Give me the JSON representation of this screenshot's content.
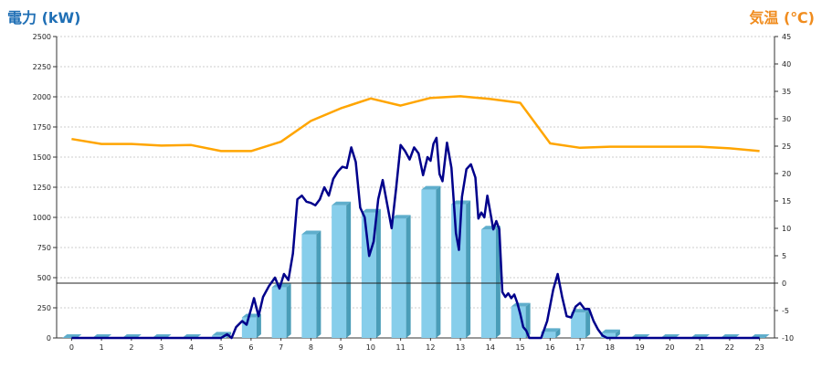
{
  "chart_data": {
    "type": "bar",
    "left_axis_title": "電力 (kW)",
    "right_axis_title": "気温 (℃)",
    "colors": {
      "bar_front": "#87CEEB",
      "bar_side": "#4A9DB8",
      "bar_top": "#5FAECC",
      "power_line": "#00008B",
      "temp_line": "#FFA500",
      "grid": "#cccccc",
      "left_title": "#1f6fb5",
      "right_title": "#f08c1e"
    },
    "grid": true,
    "x": {
      "categories": [
        "0",
        "1",
        "2",
        "3",
        "4",
        "5",
        "6",
        "7",
        "8",
        "9",
        "10",
        "11",
        "12",
        "13",
        "14",
        "15",
        "16",
        "17",
        "18",
        "19",
        "20",
        "21",
        "22",
        "23"
      ]
    },
    "y_left": {
      "range": [
        0,
        2500
      ],
      "ticks": [
        0,
        250,
        500,
        750,
        1000,
        1250,
        1500,
        1750,
        2000,
        2250,
        2500
      ],
      "tick_labels": [
        "0",
        "250",
        "500",
        "750",
        "1000",
        "1250",
        "1500",
        "1750",
        "2000",
        "2250",
        "2500"
      ]
    },
    "y_right": {
      "range": [
        -10,
        45
      ],
      "ticks": [
        -10,
        -5,
        0,
        5,
        10,
        15,
        20,
        25,
        30,
        35,
        40,
        45
      ],
      "tick_labels": [
        "-10",
        "-5",
        "0",
        "5",
        "10",
        "15",
        "20",
        "25",
        "30",
        "35",
        "40",
        "45"
      ],
      "zero_line": true
    },
    "hourly_power_bars": [
      0,
      0,
      0,
      0,
      0,
      20,
      170,
      420,
      860,
      1100,
      1040,
      990,
      1230,
      1110,
      900,
      260,
      50,
      210,
      40,
      0,
      0,
      0,
      0,
      0
    ],
    "power_line": [
      [
        0,
        0
      ],
      [
        1,
        0
      ],
      [
        2,
        0
      ],
      [
        3,
        0
      ],
      [
        4,
        0
      ],
      [
        5,
        0
      ],
      [
        5.2,
        30
      ],
      [
        5.35,
        0
      ],
      [
        5.5,
        90
      ],
      [
        5.7,
        140
      ],
      [
        5.85,
        110
      ],
      [
        6,
        240
      ],
      [
        6.1,
        330
      ],
      [
        6.25,
        180
      ],
      [
        6.4,
        340
      ],
      [
        6.6,
        430
      ],
      [
        6.8,
        500
      ],
      [
        6.95,
        410
      ],
      [
        7.1,
        530
      ],
      [
        7.25,
        480
      ],
      [
        7.4,
        700
      ],
      [
        7.55,
        1150
      ],
      [
        7.7,
        1180
      ],
      [
        7.85,
        1130
      ],
      [
        8,
        1120
      ],
      [
        8.15,
        1100
      ],
      [
        8.3,
        1150
      ],
      [
        8.45,
        1250
      ],
      [
        8.6,
        1180
      ],
      [
        8.75,
        1320
      ],
      [
        8.9,
        1380
      ],
      [
        9.05,
        1420
      ],
      [
        9.2,
        1410
      ],
      [
        9.35,
        1580
      ],
      [
        9.5,
        1460
      ],
      [
        9.65,
        1080
      ],
      [
        9.8,
        1000
      ],
      [
        9.95,
        680
      ],
      [
        10.1,
        800
      ],
      [
        10.25,
        1150
      ],
      [
        10.4,
        1310
      ],
      [
        10.55,
        1110
      ],
      [
        10.7,
        910
      ],
      [
        10.85,
        1240
      ],
      [
        11,
        1600
      ],
      [
        11.15,
        1550
      ],
      [
        11.3,
        1480
      ],
      [
        11.45,
        1580
      ],
      [
        11.6,
        1530
      ],
      [
        11.75,
        1350
      ],
      [
        11.9,
        1500
      ],
      [
        12,
        1470
      ],
      [
        12.1,
        1610
      ],
      [
        12.2,
        1660
      ],
      [
        12.3,
        1360
      ],
      [
        12.4,
        1300
      ],
      [
        12.55,
        1620
      ],
      [
        12.7,
        1410
      ],
      [
        12.85,
        870
      ],
      [
        12.95,
        730
      ],
      [
        13.05,
        1170
      ],
      [
        13.2,
        1400
      ],
      [
        13.35,
        1440
      ],
      [
        13.5,
        1330
      ],
      [
        13.6,
        990
      ],
      [
        13.7,
        1040
      ],
      [
        13.8,
        1000
      ],
      [
        13.9,
        1180
      ],
      [
        14,
        1040
      ],
      [
        14.1,
        900
      ],
      [
        14.2,
        970
      ],
      [
        14.3,
        900
      ],
      [
        14.4,
        380
      ],
      [
        14.5,
        340
      ],
      [
        14.6,
        370
      ],
      [
        14.7,
        330
      ],
      [
        14.8,
        360
      ],
      [
        14.9,
        290
      ],
      [
        15,
        200
      ],
      [
        15.1,
        90
      ],
      [
        15.2,
        60
      ],
      [
        15.3,
        0
      ],
      [
        15.7,
        0
      ],
      [
        15.9,
        140
      ],
      [
        16.1,
        400
      ],
      [
        16.25,
        530
      ],
      [
        16.4,
        340
      ],
      [
        16.55,
        180
      ],
      [
        16.7,
        170
      ],
      [
        16.85,
        260
      ],
      [
        17,
        290
      ],
      [
        17.15,
        240
      ],
      [
        17.3,
        240
      ],
      [
        17.45,
        140
      ],
      [
        17.6,
        70
      ],
      [
        17.75,
        20
      ],
      [
        17.9,
        0
      ],
      [
        18,
        0
      ],
      [
        23,
        0
      ]
    ],
    "temperature_line": [
      [
        0,
        26.3
      ],
      [
        1,
        25.4
      ],
      [
        2,
        25.4
      ],
      [
        3,
        25.1
      ],
      [
        4,
        25.2
      ],
      [
        5,
        24.1
      ],
      [
        6,
        24.1
      ],
      [
        7,
        25.8
      ],
      [
        8,
        29.6
      ],
      [
        9,
        31.9
      ],
      [
        10,
        33.7
      ],
      [
        11,
        32.4
      ],
      [
        12,
        33.8
      ],
      [
        13,
        34.1
      ],
      [
        14,
        33.6
      ],
      [
        15,
        32.9
      ],
      [
        16,
        25.5
      ],
      [
        17,
        24.7
      ],
      [
        18,
        24.9
      ],
      [
        19,
        24.9
      ],
      [
        20,
        24.9
      ],
      [
        21,
        24.9
      ],
      [
        22,
        24.6
      ],
      [
        23,
        24.1
      ]
    ]
  }
}
